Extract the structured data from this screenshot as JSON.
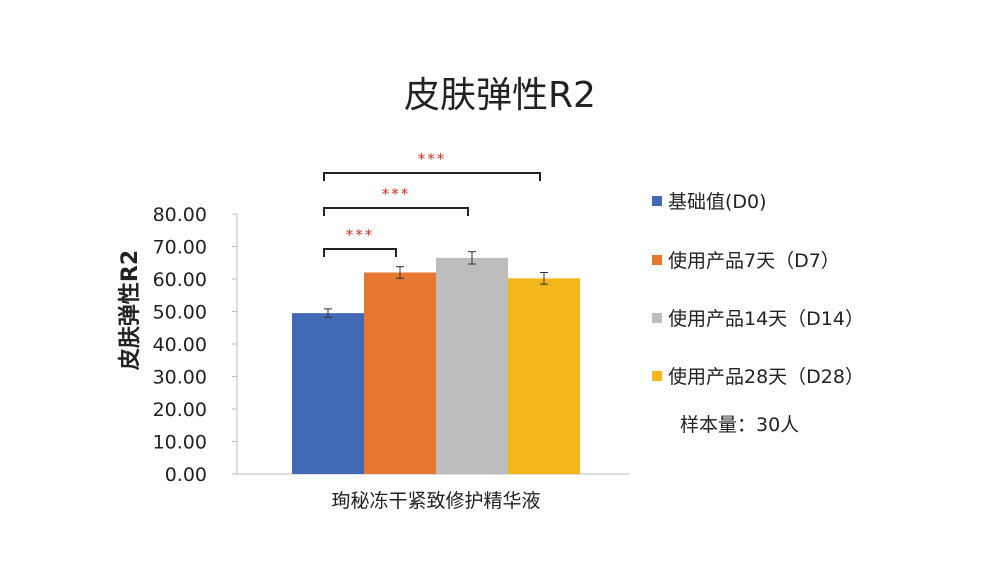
{
  "chart_data": {
    "type": "bar",
    "title": "皮肤弹性R2",
    "ylabel": "皮肤弹性R2",
    "xlabel": "",
    "ylim": [
      0,
      80
    ],
    "yticks": [
      "0.00",
      "10.00",
      "20.00",
      "30.00",
      "40.00",
      "50.00",
      "60.00",
      "70.00",
      "80.00"
    ],
    "categories": [
      "珣秘冻干紧致修护精华液"
    ],
    "series": [
      {
        "name": "基础值(D0)",
        "values": [
          49.5
        ],
        "error": [
          1.3
        ],
        "color": "#4169b5"
      },
      {
        "name": "使用产品7天（D7）",
        "values": [
          62.0
        ],
        "error": [
          1.8
        ],
        "color": "#e6772e"
      },
      {
        "name": "使用产品14天（D14）",
        "values": [
          66.5
        ],
        "error": [
          1.9
        ],
        "color": "#bdbdbd"
      },
      {
        "name": "使用产品28天（D28）",
        "values": [
          60.2
        ],
        "error": [
          1.8
        ],
        "color": "#f2b81b"
      }
    ],
    "significance": [
      {
        "from": "基础值(D0)",
        "to": "使用产品7天（D7）",
        "label": "***"
      },
      {
        "from": "基础值(D0)",
        "to": "使用产品14天（D14）",
        "label": "***"
      },
      {
        "from": "基础值(D0)",
        "to": "使用产品28天（D28）",
        "label": "***"
      }
    ],
    "legend_position": "right",
    "grid": false
  },
  "sample_note": "样本量：30人"
}
